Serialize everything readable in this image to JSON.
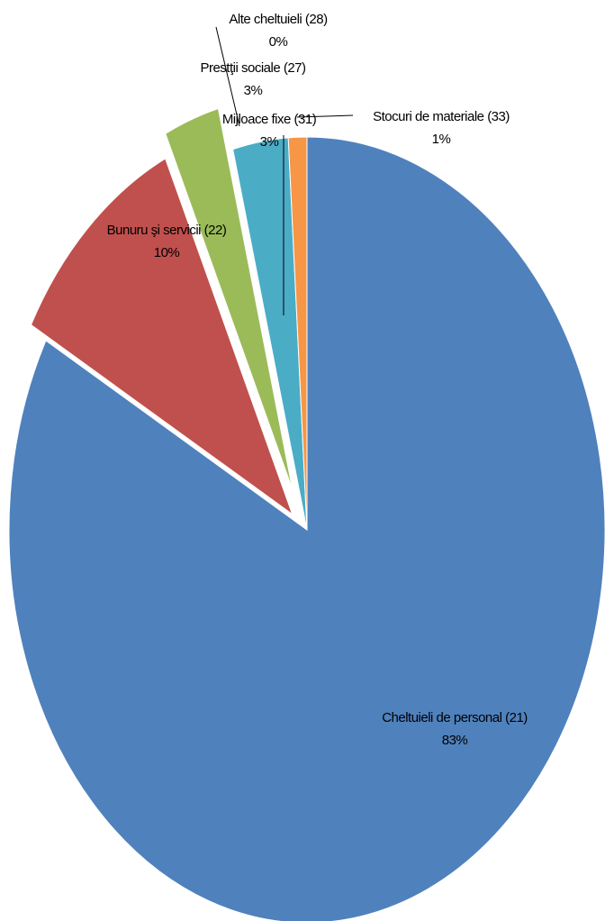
{
  "chart_data": {
    "type": "pie",
    "categories": [
      "Cheltuieli de personal (21)",
      "Bunuru şi servicii (22)",
      "Prestţii sociale (27)",
      "Alte cheltuieli (28)",
      "Mijloace fixe (31)",
      "Stocuri de materiale (33)"
    ],
    "values": [
      83,
      10,
      3,
      0,
      3,
      1
    ],
    "value_labels": [
      "83%",
      "10%",
      "3%",
      "0%",
      "3%",
      "1%"
    ],
    "colors": [
      "#4f81bd",
      "#c0504d",
      "#9bbb59",
      "#8064a2",
      "#4bacc6",
      "#f79646"
    ]
  }
}
